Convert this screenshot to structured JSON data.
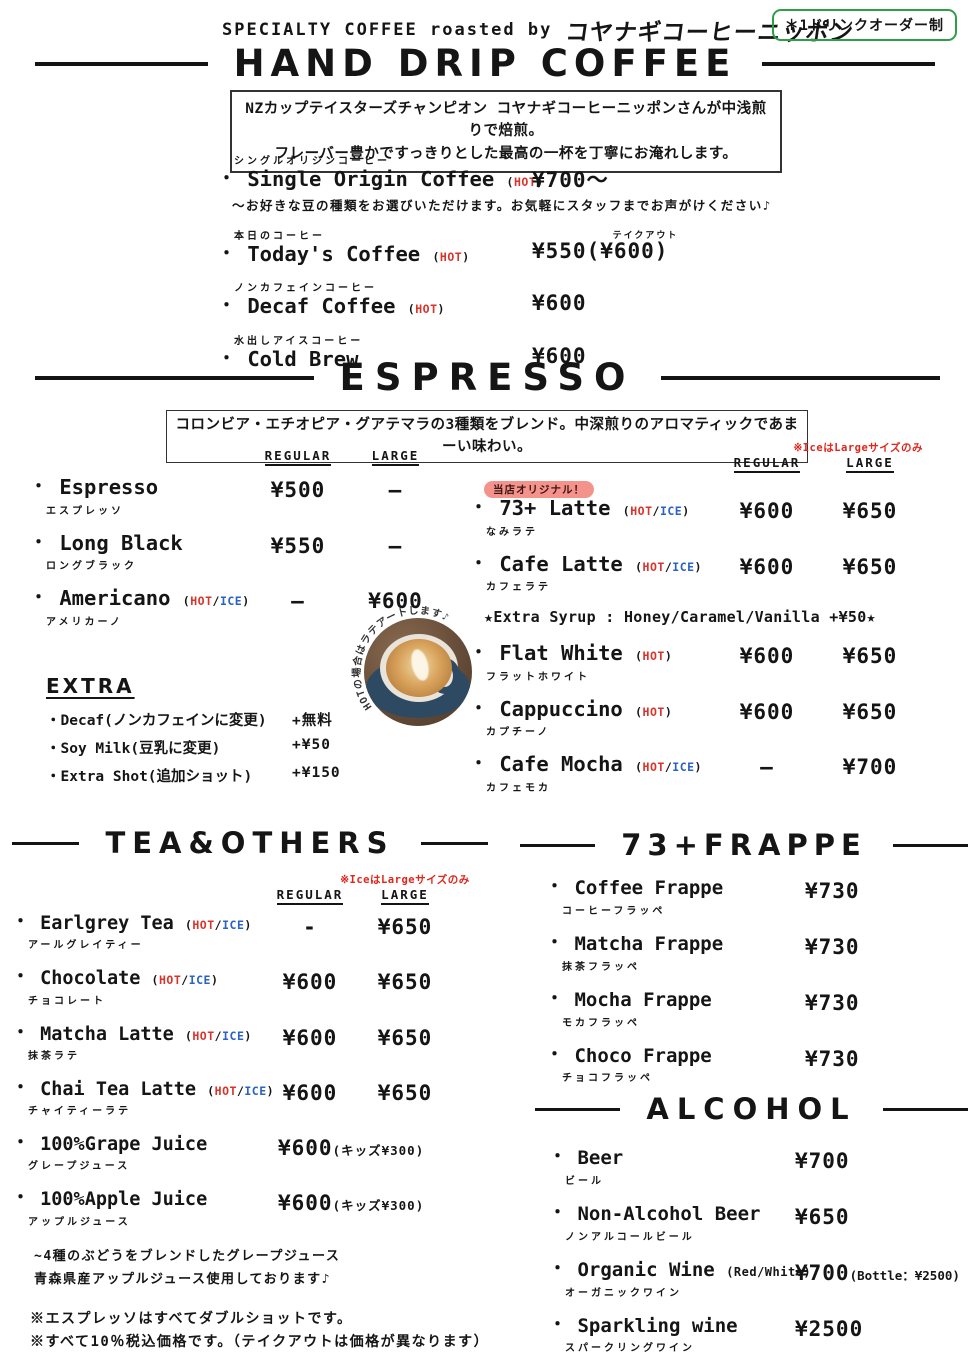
{
  "header": {
    "roasted_by": "SPECIALTY COFFEE roasted by",
    "brand": "コヤナギコーヒーニッポン",
    "order_badge": "＊1ドリンクオーダー制"
  },
  "labels": {
    "regular": "REGULAR",
    "large": "LARGE",
    "ice_note": "※IceはLargeサイズのみ"
  },
  "colors": {
    "hot": "#d9342b",
    "ice": "#2b62c4",
    "note_red": "#e0251b",
    "badge_pink": "#f4938c",
    "badge_green": "#2f9e49"
  },
  "hand_drip": {
    "title": "HAND DRIP COFFEE",
    "description": [
      "NZカップテイスターズチャンピオン コヤナギコーヒーニッポンさんが中浅煎りで焙煎。",
      "フレーバー豊かですっきりとした最高の一杯を丁寧にお淹れします。"
    ],
    "items": [
      {
        "furigana": "シングルオリジンコーヒー",
        "name": "Single Origin Coffee",
        "tags": [
          "HOT"
        ],
        "price": "¥700～",
        "note": "～お好きな豆の種類をお選びいただけます。お気軽にスタッフまでお声がけください♪"
      },
      {
        "furigana": "本日のコーヒー",
        "name": "Today's Coffee",
        "tags": [
          "HOT"
        ],
        "price": "¥550(¥600)",
        "price_super": "テイクアウト"
      },
      {
        "furigana": "ノンカフェインコーヒー",
        "name": "Decaf Coffee",
        "tags": [
          "HOT"
        ],
        "price": "¥600"
      },
      {
        "furigana": "水出しアイスコーヒー",
        "name": "Cold Brew",
        "price": "¥600"
      }
    ]
  },
  "espresso": {
    "title": "ESPRESSO",
    "description": "コロンビア・エチオピア・グアテマラの3種類をブレンド。中深煎りのアロマティックであまーい味わい。",
    "left_items": [
      {
        "name": "Espresso",
        "furigana": "エスプレッソ",
        "regular": "¥500",
        "large": "—"
      },
      {
        "name": "Long Black",
        "furigana": "ロングブラック",
        "regular": "¥550",
        "large": "—"
      },
      {
        "name": "Americano",
        "tags": [
          "HOT",
          "ICE"
        ],
        "furigana": "アメリカーノ",
        "regular": "—",
        "large": "¥600"
      }
    ],
    "extra": {
      "title": "EXTRA",
      "items": [
        {
          "label": "Decaf(ノンカフェインに変更)",
          "price": "+無料"
        },
        {
          "label": "Soy Milk(豆乳に変更)",
          "price": "+¥50"
        },
        {
          "label": "Extra Shot(追加ショット)",
          "price": "+¥150"
        }
      ]
    },
    "right_items_top": [
      {
        "badge": "当店オリジナル！",
        "name": "73+ Latte",
        "tags": [
          "HOT",
          "ICE"
        ],
        "furigana": "なみラテ",
        "regular": "¥600",
        "large": "¥650"
      },
      {
        "name": "Cafe Latte",
        "tags": [
          "HOT",
          "ICE"
        ],
        "furigana": "カフェラテ",
        "regular": "¥600",
        "large": "¥650"
      }
    ],
    "syrup_note": "★Extra Syrup : Honey/Caramel/Vanilla  +¥50★",
    "right_items_bottom": [
      {
        "name": "Flat White",
        "tags": [
          "HOT"
        ],
        "furigana": "フラットホワイト",
        "regular": "¥600",
        "large": "¥650"
      },
      {
        "name": "Cappuccino",
        "tags": [
          "HOT"
        ],
        "furigana": "カプチーノ",
        "regular": "¥600",
        "large": "¥650"
      },
      {
        "name": "Cafe Mocha",
        "tags": [
          "HOT",
          "ICE"
        ],
        "furigana": "カフェモカ",
        "regular": "—",
        "large": "¥700"
      }
    ],
    "cup_caption": "HOTの場合はラテアートします♪"
  },
  "tea": {
    "title": "TEA&OTHERS",
    "items": [
      {
        "name": "Earlgrey Tea",
        "tags": [
          "HOT",
          "ICE"
        ],
        "furigana": "アールグレイティー",
        "regular": "-",
        "large": "¥650"
      },
      {
        "name": "Chocolate",
        "tags": [
          "HOT",
          "ICE"
        ],
        "furigana": "チョコレート",
        "regular": "¥600",
        "large": "¥650"
      },
      {
        "name": "Matcha Latte",
        "tags": [
          "HOT",
          "ICE"
        ],
        "furigana": "抹茶ラテ",
        "regular": "¥600",
        "large": "¥650"
      },
      {
        "name": "Chai Tea Latte",
        "tags": [
          "HOT",
          "ICE"
        ],
        "furigana": "チャイティーラテ",
        "regular": "¥600",
        "large": "¥650"
      },
      {
        "name": "100%Grape Juice",
        "furigana": "グレープジュース",
        "price": "¥600",
        "price_suffix": "(キッズ¥300)"
      },
      {
        "name": "100%Apple Juice",
        "furigana": "アップルジュース",
        "price": "¥600",
        "price_suffix": "(キッズ¥300)"
      }
    ],
    "note": [
      "~4種のぶどうをブレンドしたグレープジュース",
      "青森県産アップルジュース使用しております♪"
    ]
  },
  "frappe": {
    "title": "73+FRAPPE",
    "items": [
      {
        "name": "Coffee Frappe",
        "furigana": "コーヒーフラッペ",
        "price": "¥730"
      },
      {
        "name": "Matcha Frappe",
        "furigana": "抹茶フラッペ",
        "price": "¥730"
      },
      {
        "name": "Mocha Frappe",
        "furigana": "モカフラッペ",
        "price": "¥730"
      },
      {
        "name": "Choco Frappe",
        "furigana": "チョコフラッペ",
        "price": "¥730"
      }
    ]
  },
  "alcohol": {
    "title": "ALCOHOL",
    "items": [
      {
        "name": "Beer",
        "furigana": "ビール",
        "price": "¥700"
      },
      {
        "name": "Non-Alcohol Beer",
        "furigana": "ノンアルコールビール",
        "price": "¥650"
      },
      {
        "name": "Organic Wine",
        "plain_tag": "(Red/White)",
        "furigana": "オーガニックワイン",
        "price": "¥700",
        "price_suffix": "(Bottle：¥2500)"
      },
      {
        "name": "Sparkling wine",
        "furigana": "スパークリングワイン",
        "price": "¥2500"
      }
    ]
  },
  "footer": {
    "notes": [
      "※エスプレッソはすべてダブルショットです。",
      "※すべて10％税込価格です。（テイクアウトは価格が異なります）"
    ]
  }
}
